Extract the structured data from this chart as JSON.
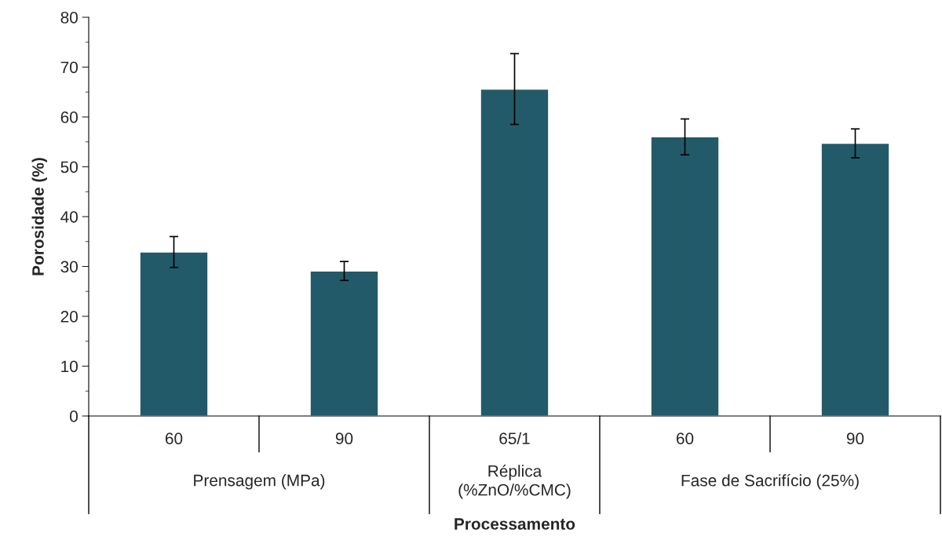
{
  "chart_data": {
    "type": "bar",
    "xlabel": "Processamento",
    "ylabel": "Porosidade (%)",
    "categories": [
      "60",
      "90",
      "65/1",
      "60",
      "90"
    ],
    "values": [
      32.9,
      29.1,
      65.6,
      56.0,
      54.7
    ],
    "errors": [
      3.1,
      1.9,
      7.1,
      3.6,
      2.9
    ],
    "color": "#235a69",
    "ylim": [
      0,
      80
    ],
    "yticks": [
      0,
      10,
      20,
      30,
      40,
      50,
      60,
      70,
      80
    ],
    "grid": false,
    "legend": false,
    "annotations": [
      "Prensagem (MPa)",
      "Réplica\n(%ZnO/%CMC)",
      "Fase de Sacrifício (25%)"
    ]
  }
}
